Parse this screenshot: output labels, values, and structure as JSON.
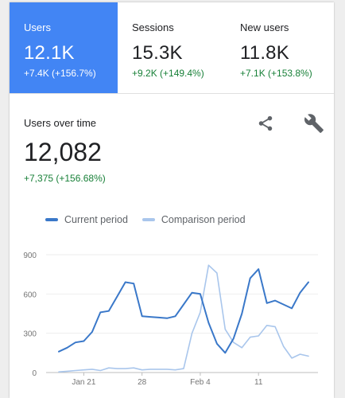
{
  "tiles": [
    {
      "label": "Users",
      "value": "12.1K",
      "change": "+7.4K (+156.7%)",
      "selected": true
    },
    {
      "label": "Sessions",
      "value": "15.3K",
      "change": "+9.2K (+149.4%)",
      "selected": false
    },
    {
      "label": "New users",
      "value": "11.8K",
      "change": "+7.1K (+153.8%)",
      "selected": false
    }
  ],
  "detail": {
    "title": "Users over time",
    "value": "12,082",
    "change": "+7,375 (+156.68%)"
  },
  "icons": {
    "share": "share-icon",
    "wrench": "wrench-icon"
  },
  "colors": {
    "accent": "#4285f4",
    "positive": "#188038",
    "current": "#3a78c9",
    "comparison": "#a9c6ec"
  },
  "chart_data": {
    "type": "line",
    "legend": [
      "Current period",
      "Comparison period"
    ],
    "legend_position": "top-left",
    "ylim": [
      0,
      900
    ],
    "yticks": [
      "0",
      "300",
      "600",
      "900"
    ],
    "grid": true,
    "xticks": [
      {
        "index": 3,
        "label": "Jan 21"
      },
      {
        "index": 10,
        "label": "28"
      },
      {
        "index": 17,
        "label": "Feb 4"
      },
      {
        "index": 24,
        "label": "11"
      }
    ],
    "series": [
      {
        "name": "Current period",
        "values": [
          160,
          190,
          230,
          240,
          310,
          460,
          470,
          580,
          690,
          680,
          430,
          425,
          420,
          415,
          430,
          520,
          610,
          600,
          380,
          220,
          150,
          260,
          450,
          720,
          790,
          530,
          550,
          520,
          490,
          610,
          690
        ]
      },
      {
        "name": "Comparison period",
        "values": [
          5,
          10,
          15,
          20,
          25,
          15,
          35,
          30,
          30,
          35,
          20,
          25,
          25,
          25,
          20,
          30,
          300,
          460,
          820,
          760,
          330,
          230,
          190,
          270,
          280,
          360,
          350,
          200,
          110,
          140,
          125
        ]
      }
    ]
  }
}
